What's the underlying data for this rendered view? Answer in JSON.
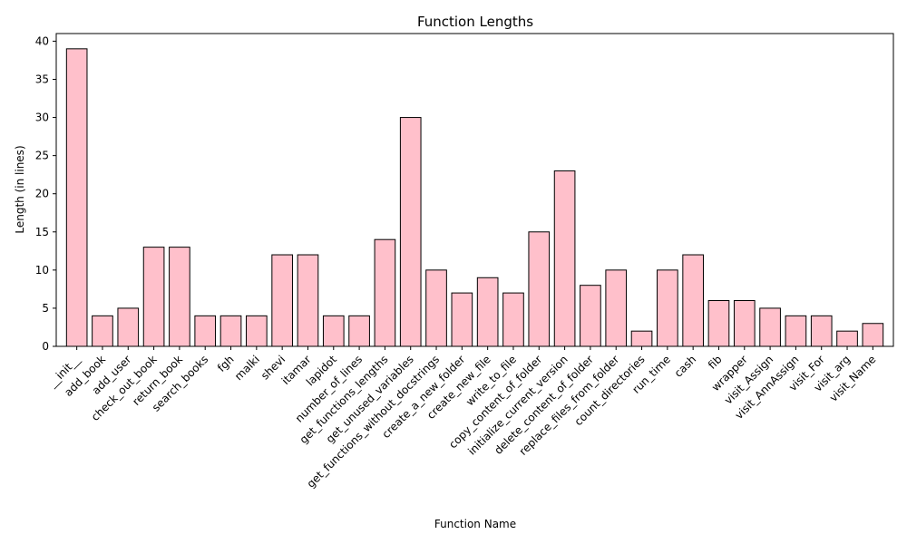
{
  "chart_data": {
    "type": "bar",
    "title": "Function Lengths",
    "xlabel": "Function Name",
    "ylabel": "Length (in lines)",
    "ylim": [
      0,
      41
    ],
    "yticks": [
      0,
      5,
      10,
      15,
      20,
      25,
      30,
      35,
      40
    ],
    "grid": false,
    "bar_color": "#ffc0cb",
    "edge_color": "#000000",
    "categories": [
      "__init__",
      "add_book",
      "add_user",
      "check_out_book",
      "return_book",
      "search_books",
      "fgh",
      "malki",
      "shevi",
      "itamar",
      "lapidot",
      "number_of_lines",
      "get_functions_lengths",
      "get_unused_variables",
      "get_functions_without_docstrings",
      "create_a_new_folder",
      "create_new_file",
      "write_to_file",
      "copy_content_of_folder",
      "initialize_current_version",
      "delete_content_of_folder",
      "replace_files_from_folder",
      "count_directories",
      "run_time",
      "cash",
      "fib",
      "wrapper",
      "visit_Assign",
      "visit_AnnAssign",
      "visit_For",
      "visit_arg",
      "visit_Name"
    ],
    "values": [
      39,
      4,
      5,
      13,
      13,
      4,
      4,
      4,
      12,
      12,
      4,
      4,
      14,
      30,
      10,
      7,
      9,
      7,
      15,
      23,
      8,
      10,
      2,
      10,
      12,
      6,
      6,
      5,
      4,
      4,
      2,
      3
    ]
  }
}
